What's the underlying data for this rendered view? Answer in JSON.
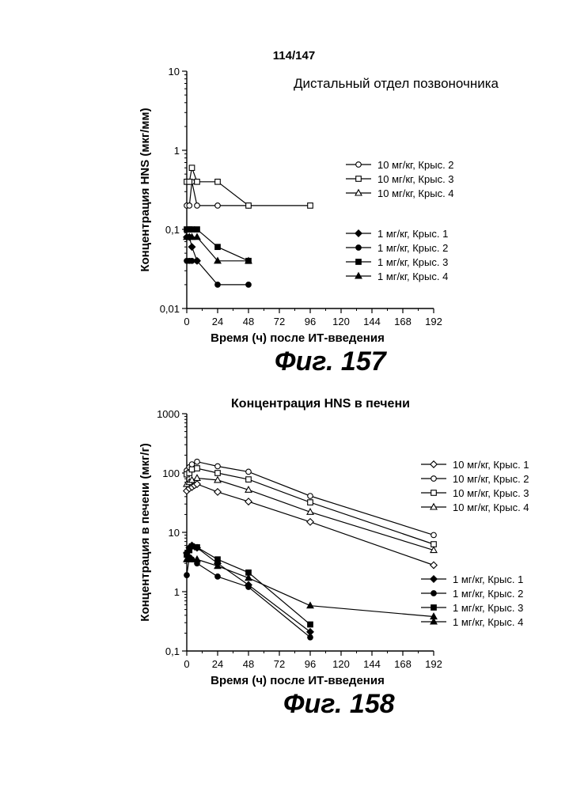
{
  "page": {
    "number": "114/147",
    "fig1_label": "Фиг. 157",
    "fig2_label": "Фиг. 158"
  },
  "chart_data": [
    {
      "type": "line",
      "title": "Дистальный отдел позвоночника",
      "xlabel": "Время (ч) после ИТ-введения",
      "ylabel": "Концентрация HNS (мкг/мм)",
      "yscale": "log",
      "ylim": [
        0.01,
        10
      ],
      "xlim": [
        0,
        192
      ],
      "xticks": [
        0,
        24,
        48,
        72,
        96,
        120,
        144,
        168,
        192
      ],
      "ytick_labels": [
        "10",
        "1",
        "0,1",
        "0,01"
      ],
      "ytick_values": [
        10,
        1,
        0.1,
        0.01
      ],
      "legend_groups": "right",
      "series": [
        {
          "name": "10 мг/кг, Крыс. 2",
          "marker": "circle-open",
          "points": [
            [
              0,
              0.2
            ],
            [
              2,
              0.2
            ],
            [
              4,
              0.4
            ],
            [
              8,
              0.2
            ],
            [
              24,
              0.2
            ],
            [
              48,
              0.2
            ]
          ]
        },
        {
          "name": "10 мг/кг, Крыс. 3",
          "marker": "square-open",
          "points": [
            [
              0,
              0.4
            ],
            [
              2,
              0.4
            ],
            [
              4,
              0.6
            ],
            [
              8,
              0.4
            ],
            [
              24,
              0.4
            ],
            [
              48,
              0.2
            ],
            [
              96,
              0.2
            ]
          ]
        },
        {
          "name": "10 мг/кг, Крыс. 4",
          "marker": "triangle-open",
          "points": []
        },
        {
          "name": "1 мг/кг, Крыс. 1",
          "marker": "diamond-filled",
          "points": [
            [
              0,
              0.08
            ],
            [
              2,
              0.08
            ],
            [
              4,
              0.06
            ],
            [
              8,
              0.04
            ]
          ]
        },
        {
          "name": "1 мг/кг, Крыс. 2",
          "marker": "circle-filled",
          "points": [
            [
              0,
              0.04
            ],
            [
              2,
              0.04
            ],
            [
              4,
              0.04
            ],
            [
              8,
              0.04
            ],
            [
              24,
              0.02
            ],
            [
              48,
              0.02
            ]
          ]
        },
        {
          "name": "1 мг/кг, Крыс. 3",
          "marker": "square-filled",
          "points": [
            [
              0,
              0.1
            ],
            [
              2,
              0.1
            ],
            [
              4,
              0.1
            ],
            [
              8,
              0.1
            ],
            [
              24,
              0.06
            ],
            [
              48,
              0.04
            ]
          ]
        },
        {
          "name": "1 мг/кг, Крыс. 4",
          "marker": "triangle-filled",
          "points": [
            [
              0,
              0.08
            ],
            [
              2,
              0.08
            ],
            [
              4,
              0.08
            ],
            [
              8,
              0.08
            ],
            [
              24,
              0.04
            ],
            [
              48,
              0.04
            ]
          ]
        }
      ]
    },
    {
      "type": "line",
      "title": "Концентрация HNS в печени",
      "xlabel": "Время (ч) после ИТ-введения",
      "ylabel": "Концентрация в печени (мкг/г)",
      "yscale": "log",
      "ylim": [
        0.1,
        1000
      ],
      "xlim": [
        0,
        192
      ],
      "xticks": [
        0,
        24,
        48,
        72,
        96,
        120,
        144,
        168,
        192
      ],
      "ytick_labels": [
        "1000",
        "100",
        "10",
        "1",
        "0,1"
      ],
      "ytick_values": [
        1000,
        100,
        10,
        1,
        0.1
      ],
      "legend_groups": "right",
      "series": [
        {
          "name": "10 мг/кг, Крыс. 1",
          "marker": "diamond-open",
          "points": [
            [
              0,
              50
            ],
            [
              2,
              55
            ],
            [
              4,
              58
            ],
            [
              6,
              62
            ],
            [
              8,
              65
            ],
            [
              24,
              48
            ],
            [
              48,
              33
            ],
            [
              96,
              15
            ],
            [
              192,
              2.8
            ]
          ]
        },
        {
          "name": "10 мг/кг, Крыс. 2",
          "marker": "circle-open",
          "points": [
            [
              0,
              110
            ],
            [
              2,
              125
            ],
            [
              4,
              140
            ],
            [
              8,
              155
            ],
            [
              24,
              130
            ],
            [
              48,
              105
            ],
            [
              96,
              41
            ],
            [
              192,
              9
            ]
          ]
        },
        {
          "name": "10 мг/кг, Крыс. 3",
          "marker": "square-open",
          "points": [
            [
              0,
              95
            ],
            [
              2,
              100
            ],
            [
              4,
              115
            ],
            [
              8,
              120
            ],
            [
              24,
              100
            ],
            [
              48,
              78
            ],
            [
              96,
              32
            ],
            [
              192,
              6.3
            ]
          ]
        },
        {
          "name": "10 мг/кг, Крыс. 4",
          "marker": "triangle-open",
          "points": [
            [
              0,
              65
            ],
            [
              2,
              70
            ],
            [
              4,
              76
            ],
            [
              8,
              82
            ],
            [
              24,
              76
            ],
            [
              48,
              52
            ],
            [
              96,
              22
            ],
            [
              192,
              5
            ]
          ]
        },
        {
          "name": "1 мг/кг, Крыс. 1",
          "marker": "diamond-filled",
          "points": [
            [
              0,
              4.5
            ],
            [
              2,
              5.5
            ],
            [
              4,
              6
            ],
            [
              8,
              5.5
            ],
            [
              24,
              3
            ],
            [
              48,
              1.3
            ],
            [
              96,
              0.21
            ]
          ]
        },
        {
          "name": "1 мг/кг, Крыс. 2",
          "marker": "circle-filled",
          "points": [
            [
              0,
              1.9
            ],
            [
              2,
              3.8
            ],
            [
              4,
              3.5
            ],
            [
              8,
              3
            ],
            [
              24,
              1.8
            ],
            [
              48,
              1.2
            ],
            [
              96,
              0.17
            ]
          ]
        },
        {
          "name": "1 мг/кг, Крыс. 3",
          "marker": "square-filled",
          "points": [
            [
              0,
              4.2
            ],
            [
              2,
              5
            ],
            [
              4,
              5.8
            ],
            [
              8,
              5.6
            ],
            [
              24,
              3.5
            ],
            [
              48,
              2.1
            ],
            [
              96,
              0.28
            ]
          ]
        },
        {
          "name": "1 мг/кг, Крыс. 4",
          "marker": "triangle-filled",
          "points": [
            [
              0,
              3.5
            ],
            [
              2,
              3.5
            ],
            [
              4,
              3.5
            ],
            [
              8,
              3.5
            ],
            [
              24,
              2.7
            ],
            [
              48,
              1.7
            ],
            [
              96,
              0.58
            ],
            [
              192,
              0.38
            ]
          ]
        }
      ]
    }
  ]
}
